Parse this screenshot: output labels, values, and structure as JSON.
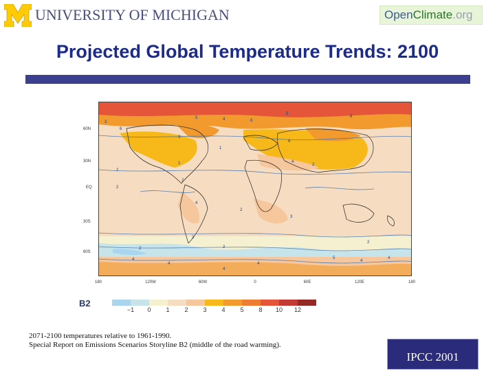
{
  "header": {
    "university_logo_text": "UNIVERSITY OF MICHIGAN",
    "openclimate_logo": {
      "part1": "Open",
      "part2": "Climate",
      "part3": ".org"
    }
  },
  "slide": {
    "title": "Projected Global Temperature Trends: 2100"
  },
  "map": {
    "lat_labels": [
      "60N",
      "30N",
      "EQ",
      "30S",
      "60S"
    ],
    "lon_labels": [
      "180",
      "120W",
      "60W",
      "0",
      "60E",
      "120E",
      "180"
    ]
  },
  "legend": {
    "title": "B2",
    "ticks": [
      "−1",
      "0",
      "1",
      "2",
      "3",
      "4",
      "5",
      "8",
      "10",
      "12"
    ],
    "colors": [
      "#a9d6ee",
      "#c6e4ea",
      "#f4f0d0",
      "#f6dcc0",
      "#f6c79c",
      "#f7b81a",
      "#f29a2e",
      "#ec7d32",
      "#e4553a",
      "#c23a33",
      "#932a26"
    ]
  },
  "caption": {
    "line1": "2071-2100 temperatures relative to 1961-1990.",
    "line2": "Special Report on Emissions Scenarios Storyline B2 (middle of the road warming)."
  },
  "source_badge": "IPCC 2001",
  "colors": {
    "title_color": "#1c2a8a",
    "title_bar": "#3c3f8e",
    "badge_bg": "#2a2b7a"
  }
}
